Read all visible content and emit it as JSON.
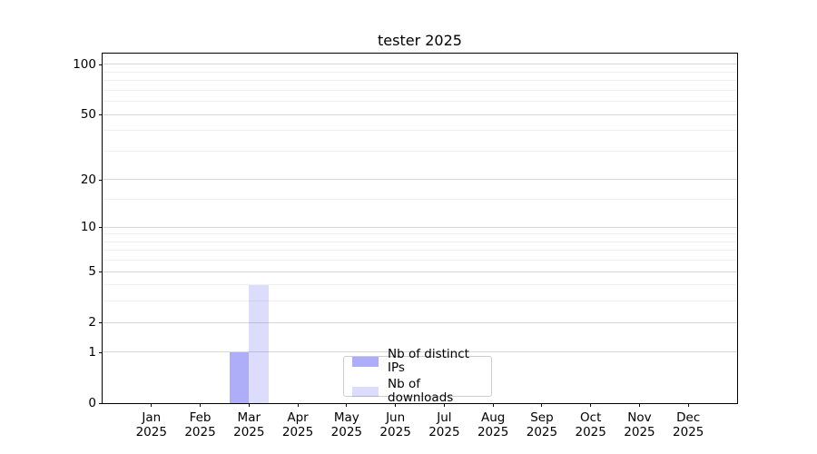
{
  "chart_data": {
    "type": "bar",
    "title": "tester 2025",
    "categories": [
      "Jan 2025",
      "Feb 2025",
      "Mar 2025",
      "Apr 2025",
      "May 2025",
      "Jun 2025",
      "Jul 2025",
      "Aug 2025",
      "Sep 2025",
      "Oct 2025",
      "Nov 2025",
      "Dec 2025"
    ],
    "series": [
      {
        "name": "Nb of distinct IPs",
        "color": "rgba(80,80,240,0.47)",
        "values": [
          0,
          0,
          1,
          0,
          0,
          0,
          0,
          0,
          0,
          0,
          0,
          0
        ]
      },
      {
        "name": "Nb of downloads",
        "color": "rgba(80,80,240,0.20)",
        "values": [
          0,
          0,
          4,
          0,
          0,
          0,
          0,
          0,
          0,
          0,
          0,
          0
        ]
      }
    ],
    "xlabel": "",
    "ylabel": "",
    "y_scale": "log1p",
    "ylim": [
      0,
      116
    ],
    "y_major_ticks": [
      0,
      1,
      2,
      5,
      10,
      20,
      50,
      100
    ],
    "y_minor_gridlines": [
      3,
      4,
      6,
      7,
      8,
      9,
      15,
      30,
      40,
      60,
      70,
      80,
      90
    ],
    "grid": "both",
    "legend_position": "lower center",
    "colors": {
      "major_grid": "#d6d6d6",
      "minor_grid": "#efefef",
      "spine": "#000000",
      "background": "#ffffff"
    }
  }
}
